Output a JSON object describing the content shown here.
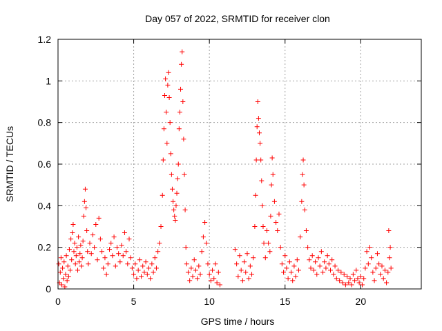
{
  "chart_data": {
    "type": "scatter",
    "title": "Day 057 of 2022, SRMTID for receiver clon",
    "xlabel": "GPS time / hours",
    "ylabel": "SRMTID / TECUs",
    "xlim": [
      0,
      24
    ],
    "ylim": [
      0,
      1.2
    ],
    "xticks": [
      0,
      5,
      10,
      15,
      20
    ],
    "yticks": [
      0,
      0.2,
      0.4,
      0.6,
      0.8,
      1,
      1.2
    ],
    "ytick_labels": [
      "0",
      "0.2",
      "0.4",
      "0.6",
      "0.8",
      "1",
      "1.2"
    ],
    "grid": true,
    "marker": "+",
    "color": "#ff0000",
    "series": [
      {
        "name": "SRMTID",
        "points": [
          [
            0.05,
            0.12
          ],
          [
            0.1,
            0.03
          ],
          [
            0.15,
            0.08
          ],
          [
            0.2,
            0.15
          ],
          [
            0.25,
            0.02
          ],
          [
            0.3,
            0.1
          ],
          [
            0.35,
            0.05
          ],
          [
            0.4,
            0.13
          ],
          [
            0.45,
            0.01
          ],
          [
            0.5,
            0.07
          ],
          [
            0.55,
            0.16
          ],
          [
            0.6,
            0.04
          ],
          [
            0.65,
            0.11
          ],
          [
            0.7,
            0.06
          ],
          [
            0.75,
            0.19
          ],
          [
            0.8,
            0.09
          ],
          [
            0.85,
            0.24
          ],
          [
            0.9,
            0.14
          ],
          [
            0.95,
            0.27
          ],
          [
            1.0,
            0.31
          ],
          [
            1.05,
            0.18
          ],
          [
            1.1,
            0.22
          ],
          [
            1.15,
            0.12
          ],
          [
            1.2,
            0.16
          ],
          [
            1.25,
            0.2
          ],
          [
            1.3,
            0.09
          ],
          [
            1.35,
            0.25
          ],
          [
            1.4,
            0.13
          ],
          [
            1.45,
            0.17
          ],
          [
            1.5,
            0.21
          ],
          [
            1.55,
            0.11
          ],
          [
            1.6,
            0.15
          ],
          [
            1.65,
            0.23
          ],
          [
            1.7,
            0.35
          ],
          [
            1.75,
            0.42
          ],
          [
            1.8,
            0.48
          ],
          [
            1.85,
            0.39
          ],
          [
            1.9,
            0.28
          ],
          [
            1.95,
            0.18
          ],
          [
            2.0,
            0.12
          ],
          [
            2.1,
            0.22
          ],
          [
            2.2,
            0.17
          ],
          [
            2.3,
            0.26
          ],
          [
            2.4,
            0.2
          ],
          [
            2.5,
            0.31
          ],
          [
            2.6,
            0.14
          ],
          [
            2.7,
            0.34
          ],
          [
            2.8,
            0.24
          ],
          [
            2.9,
            0.18
          ],
          [
            3.0,
            0.1
          ],
          [
            3.1,
            0.15
          ],
          [
            3.2,
            0.07
          ],
          [
            3.3,
            0.12
          ],
          [
            3.4,
            0.19
          ],
          [
            3.5,
            0.22
          ],
          [
            3.6,
            0.16
          ],
          [
            3.7,
            0.25
          ],
          [
            3.8,
            0.11
          ],
          [
            3.9,
            0.2
          ],
          [
            4.0,
            0.17
          ],
          [
            4.1,
            0.13
          ],
          [
            4.2,
            0.21
          ],
          [
            4.3,
            0.16
          ],
          [
            4.4,
            0.27
          ],
          [
            4.5,
            0.18
          ],
          [
            4.6,
            0.12
          ],
          [
            4.7,
            0.24
          ],
          [
            4.8,
            0.15
          ],
          [
            4.9,
            0.1
          ],
          [
            5.0,
            0.07
          ],
          [
            5.1,
            0.12
          ],
          [
            5.2,
            0.05
          ],
          [
            5.3,
            0.09
          ],
          [
            5.4,
            0.14
          ],
          [
            5.5,
            0.06
          ],
          [
            5.6,
            0.11
          ],
          [
            5.7,
            0.08
          ],
          [
            5.8,
            0.13
          ],
          [
            5.9,
            0.07
          ],
          [
            6.0,
            0.1
          ],
          [
            6.1,
            0.05
          ],
          [
            6.2,
            0.12
          ],
          [
            6.3,
            0.08
          ],
          [
            6.4,
            0.15
          ],
          [
            6.5,
            0.1
          ],
          [
            6.6,
            0.18
          ],
          [
            6.7,
            0.22
          ],
          [
            6.8,
            0.3
          ],
          [
            6.9,
            0.45
          ],
          [
            6.95,
            0.62
          ],
          [
            7.0,
            0.77
          ],
          [
            7.05,
            0.93
          ],
          [
            7.1,
            1.01
          ],
          [
            7.15,
            0.85
          ],
          [
            7.2,
            0.7
          ],
          [
            7.25,
            0.98
          ],
          [
            7.3,
            1.04
          ],
          [
            7.35,
            0.92
          ],
          [
            7.4,
            0.8
          ],
          [
            7.45,
            0.65
          ],
          [
            7.5,
            0.55
          ],
          [
            7.55,
            0.48
          ],
          [
            7.6,
            0.42
          ],
          [
            7.65,
            0.38
          ],
          [
            7.7,
            0.35
          ],
          [
            7.75,
            0.33
          ],
          [
            7.8,
            0.4
          ],
          [
            7.85,
            0.46
          ],
          [
            7.9,
            0.53
          ],
          [
            7.95,
            0.6
          ],
          [
            8.0,
            0.77
          ],
          [
            8.05,
            0.85
          ],
          [
            8.1,
            0.96
          ],
          [
            8.15,
            1.08
          ],
          [
            8.2,
            1.14
          ],
          [
            8.25,
            0.9
          ],
          [
            8.3,
            0.72
          ],
          [
            8.35,
            0.55
          ],
          [
            8.4,
            0.38
          ],
          [
            8.45,
            0.2
          ],
          [
            8.5,
            0.12
          ],
          [
            8.6,
            0.08
          ],
          [
            8.7,
            0.04
          ],
          [
            8.8,
            0.1
          ],
          [
            8.9,
            0.06
          ],
          [
            9.0,
            0.14
          ],
          [
            9.1,
            0.09
          ],
          [
            9.2,
            0.05
          ],
          [
            9.3,
            0.11
          ],
          [
            9.4,
            0.07
          ],
          [
            9.5,
            0.18
          ],
          [
            9.6,
            0.25
          ],
          [
            9.7,
            0.32
          ],
          [
            9.8,
            0.22
          ],
          [
            9.9,
            0.12
          ],
          [
            10.0,
            0.07
          ],
          [
            10.1,
            0.04
          ],
          [
            10.2,
            0.09
          ],
          [
            10.3,
            0.05
          ],
          [
            10.4,
            0.12
          ],
          [
            10.5,
            0.03
          ],
          [
            10.6,
            0.08
          ],
          [
            10.7,
            0.02
          ],
          [
            11.7,
            0.19
          ],
          [
            11.8,
            0.12
          ],
          [
            11.9,
            0.06
          ],
          [
            12.0,
            0.16
          ],
          [
            12.1,
            0.09
          ],
          [
            12.2,
            0.04
          ],
          [
            12.3,
            0.13
          ],
          [
            12.4,
            0.08
          ],
          [
            12.5,
            0.17
          ],
          [
            12.6,
            0.05
          ],
          [
            12.7,
            0.11
          ],
          [
            12.8,
            0.07
          ],
          [
            12.9,
            0.15
          ],
          [
            13.0,
            0.3
          ],
          [
            13.05,
            0.45
          ],
          [
            13.1,
            0.62
          ],
          [
            13.15,
            0.78
          ],
          [
            13.2,
            0.9
          ],
          [
            13.25,
            0.82
          ],
          [
            13.3,
            0.75
          ],
          [
            13.35,
            0.7
          ],
          [
            13.4,
            0.62
          ],
          [
            13.45,
            0.52
          ],
          [
            13.5,
            0.4
          ],
          [
            13.55,
            0.3
          ],
          [
            13.6,
            0.22
          ],
          [
            13.7,
            0.15
          ],
          [
            13.8,
            0.28
          ],
          [
            13.9,
            0.22
          ],
          [
            14.0,
            0.18
          ],
          [
            14.05,
            0.35
          ],
          [
            14.1,
            0.5
          ],
          [
            14.15,
            0.63
          ],
          [
            14.2,
            0.55
          ],
          [
            14.3,
            0.42
          ],
          [
            14.4,
            0.32
          ],
          [
            14.5,
            0.28
          ],
          [
            14.6,
            0.36
          ],
          [
            14.7,
            0.2
          ],
          [
            14.8,
            0.12
          ],
          [
            14.9,
            0.08
          ],
          [
            15.0,
            0.16
          ],
          [
            15.1,
            0.1
          ],
          [
            15.2,
            0.05
          ],
          [
            15.3,
            0.13
          ],
          [
            15.4,
            0.08
          ],
          [
            15.5,
            0.04
          ],
          [
            15.6,
            0.11
          ],
          [
            15.7,
            0.06
          ],
          [
            15.8,
            0.14
          ],
          [
            15.9,
            0.09
          ],
          [
            16.0,
            0.25
          ],
          [
            16.1,
            0.42
          ],
          [
            16.15,
            0.55
          ],
          [
            16.2,
            0.62
          ],
          [
            16.25,
            0.5
          ],
          [
            16.3,
            0.38
          ],
          [
            16.4,
            0.28
          ],
          [
            16.5,
            0.2
          ],
          [
            16.6,
            0.14
          ],
          [
            16.7,
            0.1
          ],
          [
            16.8,
            0.16
          ],
          [
            16.9,
            0.09
          ],
          [
            17.0,
            0.13
          ],
          [
            17.1,
            0.07
          ],
          [
            17.2,
            0.15
          ],
          [
            17.3,
            0.11
          ],
          [
            17.4,
            0.18
          ],
          [
            17.5,
            0.08
          ],
          [
            17.6,
            0.13
          ],
          [
            17.7,
            0.1
          ],
          [
            17.8,
            0.16
          ],
          [
            17.9,
            0.12
          ],
          [
            18.0,
            0.09
          ],
          [
            18.1,
            0.14
          ],
          [
            18.2,
            0.07
          ],
          [
            18.3,
            0.11
          ],
          [
            18.4,
            0.05
          ],
          [
            18.5,
            0.09
          ],
          [
            18.6,
            0.04
          ],
          [
            18.7,
            0.08
          ],
          [
            18.8,
            0.03
          ],
          [
            18.9,
            0.07
          ],
          [
            19.0,
            0.02
          ],
          [
            19.1,
            0.06
          ],
          [
            19.2,
            0.03
          ],
          [
            19.3,
            0.05
          ],
          [
            19.4,
            0.02
          ],
          [
            19.5,
            0.07
          ],
          [
            19.6,
            0.04
          ],
          [
            19.7,
            0.09
          ],
          [
            19.8,
            0.05
          ],
          [
            19.9,
            0.03
          ],
          [
            20.0,
            0.06
          ],
          [
            20.1,
            0.02
          ],
          [
            20.2,
            0.05
          ],
          [
            20.3,
            0.1
          ],
          [
            20.4,
            0.18
          ],
          [
            20.5,
            0.12
          ],
          [
            20.6,
            0.2
          ],
          [
            20.7,
            0.15
          ],
          [
            20.8,
            0.08
          ],
          [
            20.9,
            0.04
          ],
          [
            21.0,
            0.1
          ],
          [
            21.1,
            0.17
          ],
          [
            21.2,
            0.12
          ],
          [
            21.3,
            0.07
          ],
          [
            21.4,
            0.11
          ],
          [
            21.5,
            0.05
          ],
          [
            21.6,
            0.09
          ],
          [
            21.7,
            0.03
          ],
          [
            21.8,
            0.08
          ],
          [
            21.85,
            0.28
          ],
          [
            21.9,
            0.15
          ],
          [
            21.95,
            0.2
          ],
          [
            22.0,
            0.1
          ]
        ]
      }
    ]
  }
}
